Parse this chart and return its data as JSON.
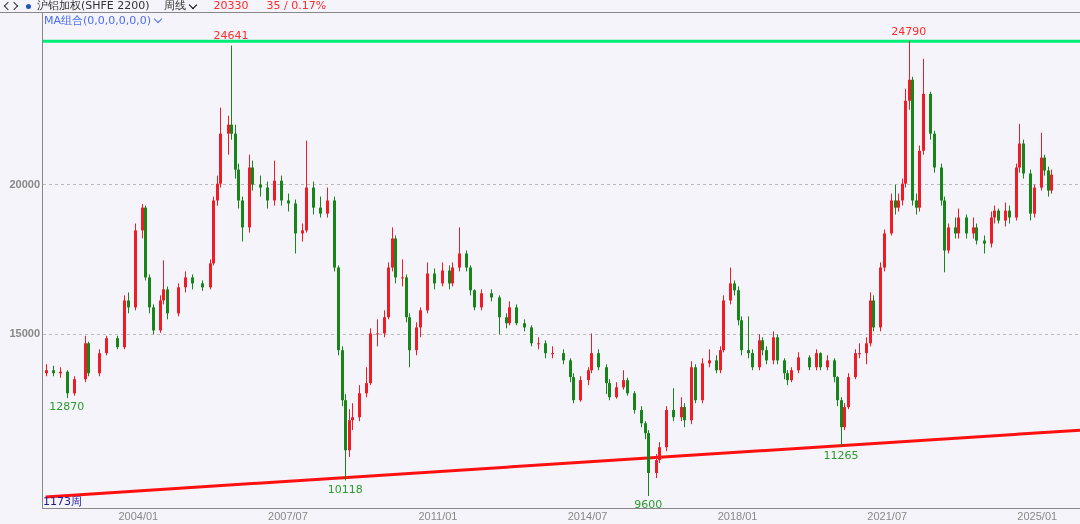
{
  "chart_data": {
    "type": "candlestick",
    "title": "沪铝加权(SHFE 2200)",
    "subtitle": "周线",
    "annotations": [
      "20330",
      "35 / 0.17%",
      "MA组合(0,0,0,0,0,0)",
      "1173周",
      {
        "text": "12870",
        "x": "2002-05",
        "y": 12870
      },
      {
        "text": "24641",
        "x": "2006-03",
        "y": 24641
      },
      {
        "text": "10118",
        "x": "2008-11",
        "y": 10118
      },
      {
        "text": "9600",
        "x": "2015-12",
        "y": 9600
      },
      {
        "text": "11265",
        "x": "2020-06",
        "y": 11265
      },
      {
        "text": "24790",
        "x": "2022-01",
        "y": 24790
      }
    ],
    "x": [
      "2001-11",
      "2002-01",
      "2002-03",
      "2002-05",
      "2002-07",
      "2002-10",
      "2002-11",
      "2003-02",
      "2003-04",
      "2003-07",
      "2003-09",
      "2003-10",
      "2003-12",
      "2004-02",
      "2004-03",
      "2004-04",
      "2004-05",
      "2004-07",
      "2004-08",
      "2004-09",
      "2004-12",
      "2005-02",
      "2005-04",
      "2005-07",
      "2005-09",
      "2005-10",
      "2005-11",
      "2005-12",
      "2006-02",
      "2006-03",
      "2006-04",
      "2006-05",
      "2006-06",
      "2006-08",
      "2006-09",
      "2006-11",
      "2007-01",
      "2007-03",
      "2007-05",
      "2007-07",
      "2007-09",
      "2007-11",
      "2007-12",
      "2008-02",
      "2008-04",
      "2008-06",
      "2008-08",
      "2008-09",
      "2008-10",
      "2008-11",
      "2008-12",
      "2009-01",
      "2009-03",
      "2009-05",
      "2009-06",
      "2009-08",
      "2009-10",
      "2009-11",
      "2009-12",
      "2010-01",
      "2010-03",
      "2010-04",
      "2010-05",
      "2010-07",
      "2010-08",
      "2010-10",
      "2010-12",
      "2011-02",
      "2011-04",
      "2011-05",
      "2011-07",
      "2011-09",
      "2011-10",
      "2011-11",
      "2012-01",
      "2012-04",
      "2012-06",
      "2012-08",
      "2012-09",
      "2012-11",
      "2013-01",
      "2013-03",
      "2013-05",
      "2013-07",
      "2013-09",
      "2013-12",
      "2014-02",
      "2014-03",
      "2014-05",
      "2014-07",
      "2014-08",
      "2014-10",
      "2014-12",
      "2015-01",
      "2015-03",
      "2015-05",
      "2015-06",
      "2015-08",
      "2015-10",
      "2015-11",
      "2015-12",
      "2016-02",
      "2016-03",
      "2016-05",
      "2016-07",
      "2016-09",
      "2016-10",
      "2016-12",
      "2017-01",
      "2017-03",
      "2017-05",
      "2017-07",
      "2017-08",
      "2017-09",
      "2017-11",
      "2017-12",
      "2018-01",
      "2018-02",
      "2018-04",
      "2018-05",
      "2018-07",
      "2018-08",
      "2018-09",
      "2018-11",
      "2018-12",
      "2019-02",
      "2019-03",
      "2019-04",
      "2019-06",
      "2019-09",
      "2019-11",
      "2019-12",
      "2020-02",
      "2020-04",
      "2020-05",
      "2020-06",
      "2020-07",
      "2020-08",
      "2020-10",
      "2020-11",
      "2021-01",
      "2021-02",
      "2021-03",
      "2021-05",
      "2021-06",
      "2021-08",
      "2021-09",
      "2021-10",
      "2021-11",
      "2021-12",
      "2022-01",
      "2022-02",
      "2022-03",
      "2022-04",
      "2022-05",
      "2022-07",
      "2022-08",
      "2022-10",
      "2022-11",
      "2022-12",
      "2023-02",
      "2023-03",
      "2023-05",
      "2023-07",
      "2023-08",
      "2023-10",
      "2023-12",
      "2024-01",
      "2024-02",
      "2024-04",
      "2024-05",
      "2024-07",
      "2024-08",
      "2024-09",
      "2024-11",
      "2024-12",
      "2025-02",
      "2025-03",
      "2025-04",
      "2025-05"
    ],
    "ohlc": [
      [
        13700,
        14000,
        13600,
        13800
      ],
      [
        13800,
        13950,
        13600,
        13700
      ],
      [
        13700,
        13900,
        13550,
        13750
      ],
      [
        13750,
        13800,
        12870,
        13030
      ],
      [
        13030,
        13600,
        12950,
        13500
      ],
      [
        13500,
        14950,
        13400,
        14700
      ],
      [
        14700,
        14750,
        13600,
        13700
      ],
      [
        13700,
        14500,
        13600,
        14370
      ],
      [
        14370,
        14950,
        14300,
        14870
      ],
      [
        14870,
        14950,
        14500,
        14570
      ],
      [
        14570,
        16300,
        14500,
        16130
      ],
      [
        16130,
        16400,
        15700,
        15900
      ],
      [
        15900,
        18700,
        15800,
        18470
      ],
      [
        18470,
        19350,
        18200,
        19230
      ],
      [
        19230,
        19300,
        16800,
        16900
      ],
      [
        16900,
        17000,
        15700,
        15900
      ],
      [
        15900,
        16000,
        15000,
        15130
      ],
      [
        15130,
        16300,
        15050,
        16130
      ],
      [
        16130,
        17470,
        16000,
        16500
      ],
      [
        16500,
        16600,
        15500,
        15700
      ],
      [
        15700,
        16700,
        15600,
        16570
      ],
      [
        16570,
        17100,
        16400,
        16900
      ],
      [
        16900,
        17000,
        16500,
        16700
      ],
      [
        16700,
        16800,
        16450,
        16570
      ],
      [
        16570,
        17500,
        16500,
        17370
      ],
      [
        17370,
        19600,
        17300,
        19470
      ],
      [
        19470,
        20300,
        19300,
        20030
      ],
      [
        20030,
        22570,
        19900,
        21700
      ],
      [
        21700,
        22300,
        21000,
        22000
      ],
      [
        22000,
        24641,
        21500,
        21700
      ],
      [
        21700,
        22000,
        20200,
        20500
      ],
      [
        20500,
        20700,
        19200,
        19470
      ],
      [
        19470,
        19600,
        18100,
        18570
      ],
      [
        18570,
        21000,
        18400,
        20570
      ],
      [
        20570,
        20800,
        19800,
        20000
      ],
      [
        20000,
        20300,
        19600,
        19900
      ],
      [
        19900,
        20100,
        19200,
        19470
      ],
      [
        19470,
        20800,
        19300,
        20130
      ],
      [
        20130,
        20300,
        19300,
        19470
      ],
      [
        19470,
        19700,
        19100,
        19370
      ],
      [
        19370,
        19500,
        17700,
        18370
      ],
      [
        18370,
        18700,
        18100,
        18470
      ],
      [
        18470,
        21470,
        18400,
        19900
      ],
      [
        19900,
        20100,
        19000,
        19230
      ],
      [
        19230,
        19600,
        18900,
        19030
      ],
      [
        19030,
        19900,
        18900,
        19470
      ],
      [
        19470,
        19600,
        17100,
        17230
      ],
      [
        17230,
        17300,
        14300,
        14470
      ],
      [
        14470,
        14600,
        12600,
        12800
      ],
      [
        12800,
        13000,
        10118,
        11130
      ],
      [
        11130,
        12500,
        10900,
        12130
      ],
      [
        12130,
        12700,
        11800,
        12230
      ],
      [
        12230,
        13300,
        12100,
        13030
      ],
      [
        13030,
        13900,
        12900,
        13370
      ],
      [
        13370,
        15200,
        13300,
        15030
      ],
      [
        15030,
        15500,
        14600,
        15030
      ],
      [
        15030,
        15800,
        14900,
        15570
      ],
      [
        15570,
        17400,
        15500,
        17230
      ],
      [
        17230,
        18570,
        17100,
        18200
      ],
      [
        18200,
        18300,
        16700,
        16900
      ],
      [
        16900,
        17500,
        16600,
        16900
      ],
      [
        16900,
        17000,
        15400,
        15570
      ],
      [
        15570,
        15700,
        13900,
        14470
      ],
      [
        14470,
        15400,
        14300,
        15230
      ],
      [
        15230,
        15900,
        14900,
        15800
      ],
      [
        15800,
        17400,
        15700,
        17030
      ],
      [
        17030,
        17200,
        16500,
        16700
      ],
      [
        16700,
        17400,
        16600,
        17130
      ],
      [
        17130,
        17300,
        16500,
        16700
      ],
      [
        16700,
        17400,
        16600,
        17230
      ],
      [
        17230,
        18570,
        17100,
        17700
      ],
      [
        17700,
        17800,
        17100,
        17230
      ],
      [
        17230,
        17300,
        16300,
        16470
      ],
      [
        16470,
        16500,
        15800,
        15900
      ],
      [
        15900,
        16500,
        15800,
        16370
      ],
      [
        16370,
        16500,
        16100,
        16230
      ],
      [
        16230,
        16300,
        15000,
        15570
      ],
      [
        15570,
        15700,
        15200,
        15370
      ],
      [
        15370,
        16100,
        15300,
        15900
      ],
      [
        15900,
        16000,
        15300,
        15370
      ],
      [
        15370,
        15500,
        15100,
        15230
      ],
      [
        15230,
        15300,
        14600,
        14700
      ],
      [
        14700,
        14900,
        14500,
        14700
      ],
      [
        14700,
        14800,
        14200,
        14370
      ],
      [
        14370,
        14600,
        14200,
        14370
      ],
      [
        14370,
        14500,
        14000,
        14130
      ],
      [
        14130,
        14200,
        13400,
        13570
      ],
      [
        13570,
        13700,
        12700,
        12800
      ],
      [
        12800,
        13600,
        12750,
        13470
      ],
      [
        13470,
        13900,
        13300,
        13800
      ],
      [
        13800,
        15030,
        13700,
        14370
      ],
      [
        14370,
        14500,
        13800,
        13900
      ],
      [
        13900,
        14000,
        13000,
        13370
      ],
      [
        13370,
        13500,
        12800,
        12900
      ],
      [
        12900,
        13400,
        12850,
        13230
      ],
      [
        13230,
        13800,
        13150,
        13470
      ],
      [
        13470,
        13550,
        12950,
        13030
      ],
      [
        13030,
        13100,
        12350,
        12470
      ],
      [
        12470,
        12600,
        11900,
        12030
      ],
      [
        12030,
        12100,
        11500,
        11700
      ],
      [
        11700,
        11800,
        9600,
        10370
      ],
      [
        10370,
        11000,
        10200,
        10800
      ],
      [
        10800,
        11400,
        10700,
        11230
      ],
      [
        11230,
        12600,
        11100,
        12470
      ],
      [
        12470,
        13200,
        12100,
        12230
      ],
      [
        12230,
        12900,
        12100,
        12570
      ],
      [
        12570,
        12700,
        11900,
        12130
      ],
      [
        12130,
        14100,
        12000,
        13900
      ],
      [
        13900,
        14000,
        12700,
        12800
      ],
      [
        12800,
        14200,
        12700,
        14030
      ],
      [
        14030,
        14500,
        13900,
        14130
      ],
      [
        14130,
        14300,
        13700,
        13800
      ],
      [
        13800,
        14600,
        13700,
        14470
      ],
      [
        14470,
        16300,
        14400,
        16130
      ],
      [
        16130,
        17230,
        16000,
        16700
      ],
      [
        16700,
        16800,
        16300,
        16470
      ],
      [
        16470,
        16600,
        15300,
        15470
      ],
      [
        15470,
        15600,
        14300,
        14470
      ],
      [
        14470,
        15600,
        14200,
        14370
      ],
      [
        14370,
        14500,
        13800,
        13900
      ],
      [
        13900,
        15000,
        13800,
        14800
      ],
      [
        14800,
        14900,
        14300,
        14470
      ],
      [
        14470,
        14600,
        14000,
        14130
      ],
      [
        14130,
        15100,
        14000,
        14900
      ],
      [
        14900,
        15000,
        14000,
        14130
      ],
      [
        14130,
        14200,
        13500,
        13700
      ],
      [
        13700,
        13800,
        13300,
        13470
      ],
      [
        13470,
        13900,
        13400,
        13800
      ],
      [
        13800,
        14400,
        13700,
        14230
      ],
      [
        14230,
        14300,
        13800,
        13900
      ],
      [
        13900,
        14500,
        13800,
        14370
      ],
      [
        14370,
        14400,
        13800,
        13900
      ],
      [
        13900,
        14300,
        13800,
        14130
      ],
      [
        14130,
        14200,
        13400,
        13570
      ],
      [
        13570,
        13600,
        12600,
        12800
      ],
      [
        12800,
        12900,
        11265,
        11900
      ],
      [
        11900,
        12700,
        11800,
        12570
      ],
      [
        12570,
        13700,
        12500,
        13570
      ],
      [
        13570,
        14500,
        13500,
        14370
      ],
      [
        14370,
        14700,
        14200,
        14370
      ],
      [
        14370,
        14900,
        14000,
        14700
      ],
      [
        14700,
        16400,
        14600,
        16130
      ],
      [
        16130,
        16300,
        15100,
        15230
      ],
      [
        15230,
        17400,
        15100,
        17230
      ],
      [
        17230,
        18500,
        17100,
        18370
      ],
      [
        18370,
        19700,
        18300,
        19470
      ],
      [
        19470,
        20000,
        19000,
        19230
      ],
      [
        19230,
        19700,
        19100,
        19470
      ],
      [
        19470,
        20200,
        19300,
        20030
      ],
      [
        20030,
        23200,
        19900,
        22800
      ],
      [
        22800,
        24790,
        22500,
        23500
      ],
      [
        23500,
        23600,
        19300,
        19470
      ],
      [
        19470,
        19700,
        19000,
        19230
      ],
      [
        19230,
        21300,
        19100,
        21130
      ],
      [
        21130,
        24200,
        21000,
        23030
      ],
      [
        23030,
        23100,
        21500,
        21700
      ],
      [
        21700,
        21800,
        20400,
        20570
      ],
      [
        20570,
        20700,
        19300,
        19470
      ],
      [
        19470,
        19600,
        17070,
        17800
      ],
      [
        17800,
        18700,
        17700,
        18570
      ],
      [
        18570,
        18900,
        18200,
        18370
      ],
      [
        18370,
        19200,
        18200,
        18900
      ],
      [
        18900,
        19000,
        18200,
        18370
      ],
      [
        18370,
        18900,
        18200,
        18570
      ],
      [
        18570,
        18700,
        18000,
        18130
      ],
      [
        18130,
        18300,
        17700,
        18030
      ],
      [
        18030,
        19100,
        17900,
        18900
      ],
      [
        18900,
        19300,
        18700,
        19130
      ],
      [
        19130,
        19200,
        18700,
        18800
      ],
      [
        18800,
        19400,
        18600,
        19130
      ],
      [
        19130,
        19300,
        18700,
        18900
      ],
      [
        18900,
        20700,
        18800,
        20570
      ],
      [
        20570,
        22030,
        20400,
        21370
      ],
      [
        21370,
        21500,
        20200,
        20370
      ],
      [
        20370,
        20500,
        18800,
        19030
      ],
      [
        19030,
        20000,
        18900,
        19900
      ],
      [
        19900,
        21730,
        19800,
        20900
      ],
      [
        20900,
        21000,
        20300,
        20470
      ],
      [
        20470,
        20600,
        19600,
        19800
      ],
      [
        19800,
        20500,
        19700,
        20330
      ]
    ],
    "series": [
      {
        "type": "line",
        "color": "#ff1010",
        "x": [
          "2001-11",
          "2026-01"
        ],
        "values": [
          9570,
          11800
        ]
      }
    ],
    "ref_lines": [
      {
        "axis": "y",
        "value": 24790,
        "color": "#00ee77"
      }
    ],
    "xlim": [
      "2001-10",
      "2026-01"
    ],
    "xticks": [
      {
        "value": "2004-01",
        "label": "2004/01"
      },
      {
        "value": "2007-07",
        "label": "2007/07"
      },
      {
        "value": "2011-01",
        "label": "2011/01"
      },
      {
        "value": "2014-07",
        "label": "2014/07"
      },
      {
        "value": "2018-01",
        "label": "2018/01"
      },
      {
        "value": "2021-07",
        "label": "2021/07"
      },
      {
        "value": "2025-01",
        "label": "2025/01"
      }
    ],
    "ylim": [
      9200,
      25730
    ],
    "yticks": [
      15000,
      20000
    ],
    "grid": "y",
    "legend": false,
    "line_style": "solid",
    "marker": "none"
  }
}
